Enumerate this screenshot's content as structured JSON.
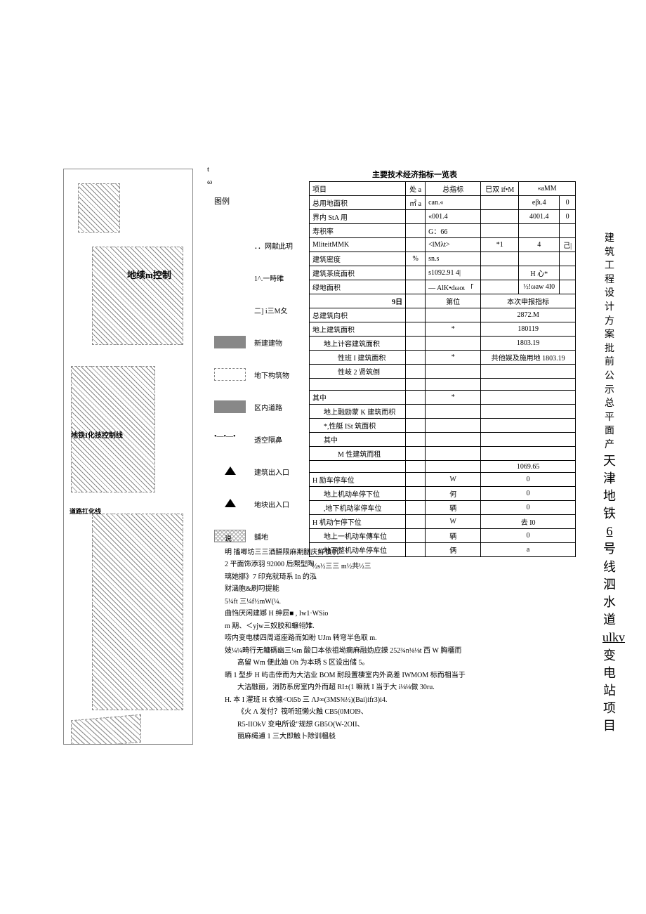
{
  "tl": {
    "t": "t",
    "omega": "ω"
  },
  "legend": {
    "header": "图例",
    "items": [
      {
        "label": "．．网献此玥",
        "swatch": "swatch-none"
      },
      {
        "label": "1^.一畤雎",
        "swatch": "swatch-none"
      },
      {
        "label": "二] i三M夂",
        "swatch": "swatch-none"
      },
      {
        "label": "新建建物",
        "swatch": "swatch-solid"
      },
      {
        "label": "地下构筑物",
        "swatch": "swatch-dash"
      },
      {
        "label": "区内道路",
        "swatch": "swatch-solid"
      },
      {
        "label": "透空隔鼻",
        "swatch": "swatch-dotted"
      },
      {
        "label": "建筑出入口",
        "swatch": "swatch-triangle"
      },
      {
        "label": "地块出入口",
        "swatch": "swatch-triangle"
      },
      {
        "label": "舖地",
        "swatch": "swatch-cross"
      }
    ]
  },
  "map": {
    "label1": "地续m控制",
    "label2": "地铁I化技控制线",
    "label3": "道路扛化线"
  },
  "table": {
    "title": "主要技术经济指标一览表",
    "h_item": "项目",
    "h_unit": "处\na",
    "h_total": "总指标",
    "h_shuang": "巳双 if•M",
    "h_amm": "«aMM",
    "rows1": [
      {
        "a": "总用地面积",
        "b": "㎡\na",
        "c": "can.«",
        "d": "",
        "e": "eβι.4",
        "f": "0"
      },
      {
        "a": "界内 StA 用",
        "b": "",
        "c": "«001.4",
        "d": "",
        "e": "4001.4",
        "f": "0"
      },
      {
        "a": "寿积率",
        "b": "",
        "c": "G：66",
        "d": "",
        "e": "",
        "f": ""
      },
      {
        "a": "MliteitMMK",
        "b": "",
        "c": "<lMλt>",
        "d": "*1",
        "e": "4",
        "f": "己|"
      },
      {
        "a": "建筑密度",
        "b": "%",
        "c": "sn.s",
        "d": "",
        "e": "",
        "f": ""
      },
      {
        "a": "建筑茶底面积",
        "b": "",
        "c": "s1092.91 4|",
        "d": "",
        "e": "H 心*",
        "f": ""
      },
      {
        "a": "绿地面积",
        "b": "",
        "c": "— AlK•dωoι      「",
        "d": "",
        "e": "½!ωaw     4I0",
        "f": ""
      }
    ],
    "h2_date": "9日",
    "h2_unit": "第位",
    "h2_this": "本次申报指标",
    "rows2": [
      {
        "a": "总建筑向枳",
        "b": "",
        "c": "",
        "d": "2872.M"
      },
      {
        "a": "地上建筑面积",
        "b": "",
        "c": "*",
        "d": "180119"
      },
      {
        "a": "地上计容建筑面积",
        "b": "",
        "c": "",
        "d": "1803.19",
        "indent": 1
      },
      {
        "a": "性班 I 建筑面积",
        "b": "",
        "c": "*",
        "d": "共他娱及施用地 1803.19",
        "indent": 2
      },
      {
        "a": "性岐 2 贤筑倒",
        "b": "",
        "c": "",
        "d": "",
        "indent": 2
      },
      {
        "a": "",
        "b": "",
        "c": "",
        "d": ""
      },
      {
        "a": "其中",
        "b": "",
        "c": "*",
        "d": ""
      },
      {
        "a": "地上融励蒙 K 建筑而枳",
        "b": "",
        "c": "",
        "d": "",
        "indent": 1
      },
      {
        "a": "*,性艇 ISt 筑面枳",
        "b": "",
        "c": "",
        "d": "",
        "indent": 1
      },
      {
        "a": "其中",
        "b": "",
        "c": "",
        "d": "",
        "indent": 1
      },
      {
        "a": "M 性建筑而租",
        "b": "",
        "c": "",
        "d": "",
        "indent": 2
      },
      {
        "a": "",
        "b": "",
        "c": "",
        "d": "1069.65"
      },
      {
        "a": "H 励车停车位",
        "b": "",
        "c": "W",
        "d": "0"
      },
      {
        "a": "地上机动牟停下位",
        "b": "",
        "c": "何",
        "d": "0",
        "indent": 1
      },
      {
        "a": ",地下机动挲停车位",
        "b": "",
        "c": "辆",
        "d": "0",
        "indent": 1
      },
      {
        "a": "H 机动乍停下位",
        "b": "",
        "c": "W",
        "d": "去 I0"
      },
      {
        "a": "地上一机动车傳车位",
        "b": "",
        "c": "辆",
        "d": "0",
        "indent": 1
      },
      {
        "a": "地下整机动牟停车位",
        "b": "",
        "c": "俩",
        "d": "a",
        "indent": 1
      }
    ],
    "footnote": "½s½三三 m½共½三"
  },
  "sideTitle": {
    "l1": "建筑工程设计方案批前公示总平面",
    "l2": "产",
    "l3": "天津地铁",
    "l4": "6",
    "l5": "号线泗水道",
    "l6": "ulkv",
    "l7": "变电站项目"
  },
  "notes": {
    "title": "说",
    "lines": [
      "明 搐唧坊三三酒臙限麻期胭庆鮮㥽帆",
      "2 平面饰添羽 92000 后熈型陶",
      "璃她挪》7 印充就琦系 In 的泓",
      "财涵胞&刷叼提能",
      "5¼ft 三¼f½mW(¼.",
      "曲㤘厌闲建娜 H 绅屃■ , Iw1·WSio",
      "m 期、＜yjw三奴胶和蠊翎雉.",
      "唠内变电楼四周道座路而如盼 UJm 转穹半色取 m.",
      "妓¼¼畸行无鳙碼幽三¼m 酸口本依祖坳瘸麻融妫应鑅 252¾n⅛⅛t 西 W 胸橊而",
      "高留 Wm 便此妯 Oh 为本琇 S 区设出储 5。",
      "晒 1 型步 H 屿击倖而为大沽业 BOM 耐段置棲室内外高差 IWMOM 标而相当于",
      "大沽融丽，消防系房室内外而超 RI±(1 嘛就 I 当于大 i⅛⅛做 30ru.",
      "H. 本 I 灈班 H 衣據<Oi5b 三 ΛJ∞(3MS⅜½)(Bai)ifr3)i4.",
      "《火 Λ 发付？筏听班懒火触 CB5(0MOI9、",
      "R5-IIOkV 变电所设\"规想 GB5O(W-2OII、",
      "丽麻绳逋 1 三大即触卜除训榲棪"
    ],
    "indents": [
      0,
      0,
      0,
      0,
      0,
      0,
      0,
      0,
      0,
      1,
      0,
      1,
      0,
      1,
      1,
      1
    ]
  }
}
